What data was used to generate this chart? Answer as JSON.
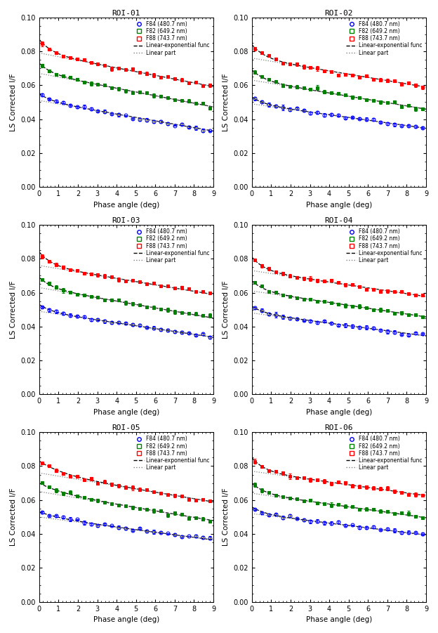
{
  "roi_titles": [
    "ROI-01",
    "ROI-02",
    "ROI-03",
    "ROI-04",
    "ROI-05",
    "ROI-06"
  ],
  "colors": [
    "blue",
    "green",
    "red"
  ],
  "marker_shapes": {
    "blue": "o",
    "green": "s",
    "red": "s"
  },
  "phase_range": [
    0,
    9
  ],
  "ylim": [
    0,
    0.1
  ],
  "yticks": [
    0,
    0.02,
    0.04,
    0.06,
    0.08,
    0.1
  ],
  "xticks": [
    0,
    1,
    2,
    3,
    4,
    5,
    6,
    7,
    8,
    9
  ],
  "xlabel": "Phase angle (deg)",
  "ylabel": "LS Corrected I/F",
  "legend_labels": [
    "F84 (480.7 nm)",
    "F82 (649.2 nm)",
    "F88 (743.7 nm)",
    "Linear-exponential func",
    "Linear part"
  ],
  "roi_params": {
    "ROI-01": {
      "blue": {
        "f0": 0.051,
        "b": -0.002,
        "A": 0.004,
        "k": 1.5
      },
      "green": {
        "f0": 0.067,
        "b": -0.0022,
        "A": 0.006,
        "k": 1.5
      },
      "red": {
        "f0": 0.079,
        "b": -0.0022,
        "A": 0.008,
        "k": 1.5
      }
    },
    "ROI-02": {
      "blue": {
        "f0": 0.049,
        "b": -0.0016,
        "A": 0.004,
        "k": 1.5
      },
      "green": {
        "f0": 0.063,
        "b": -0.0019,
        "A": 0.006,
        "k": 1.5
      },
      "red": {
        "f0": 0.076,
        "b": -0.0019,
        "A": 0.008,
        "k": 1.5
      }
    },
    "ROI-03": {
      "blue": {
        "f0": 0.049,
        "b": -0.0017,
        "A": 0.004,
        "k": 1.5
      },
      "green": {
        "f0": 0.063,
        "b": -0.002,
        "A": 0.006,
        "k": 1.5
      },
      "red": {
        "f0": 0.076,
        "b": -0.0019,
        "A": 0.008,
        "k": 1.5
      }
    },
    "ROI-04": {
      "blue": {
        "f0": 0.048,
        "b": -0.0015,
        "A": 0.004,
        "k": 1.5
      },
      "green": {
        "f0": 0.061,
        "b": -0.0017,
        "A": 0.006,
        "k": 1.5
      },
      "red": {
        "f0": 0.073,
        "b": -0.0017,
        "A": 0.008,
        "k": 1.5
      }
    },
    "ROI-05": {
      "blue": {
        "f0": 0.05,
        "b": -0.0015,
        "A": 0.003,
        "k": 0.8
      },
      "green": {
        "f0": 0.065,
        "b": -0.0019,
        "A": 0.005,
        "k": 0.8
      },
      "red": {
        "f0": 0.076,
        "b": -0.0019,
        "A": 0.007,
        "k": 0.8
      }
    },
    "ROI-06": {
      "blue": {
        "f0": 0.052,
        "b": -0.0014,
        "A": 0.004,
        "k": 1.5
      },
      "green": {
        "f0": 0.064,
        "b": -0.0016,
        "A": 0.006,
        "k": 1.5
      },
      "red": {
        "f0": 0.077,
        "b": -0.0016,
        "A": 0.008,
        "k": 1.5
      }
    }
  }
}
